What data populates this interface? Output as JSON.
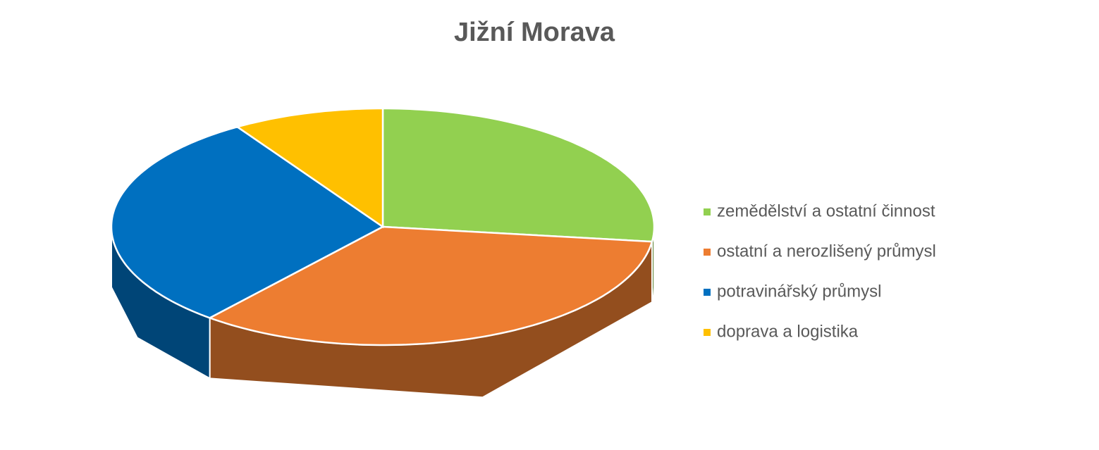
{
  "chart_data": {
    "type": "pie",
    "title": "Jižní Morava",
    "categories": [
      "zemědělství a ostatní činnost",
      "ostatní a nerozlišený průmysl",
      "potravinářský průmysl",
      "doprava a logistika"
    ],
    "values": [
      27,
      34,
      30,
      9
    ],
    "colors": [
      "#92d050",
      "#ed7d31",
      "#0070c0",
      "#ffc000"
    ],
    "legend": "right"
  }
}
